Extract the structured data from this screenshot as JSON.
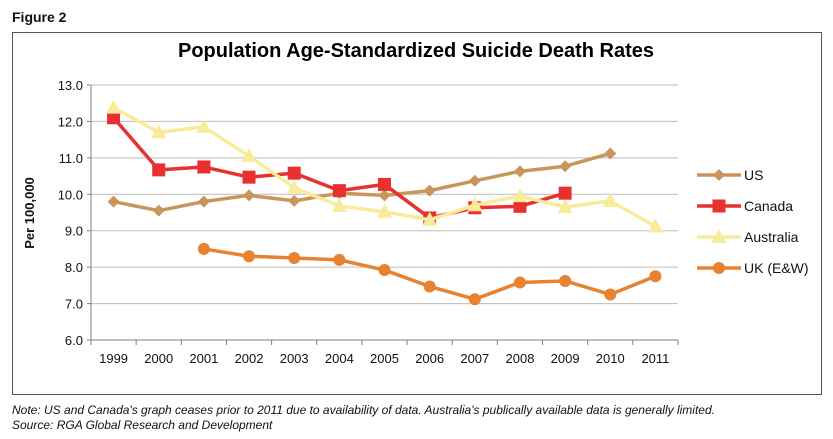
{
  "figure_label": "Figure 2",
  "notes": {
    "line1": "Note: US and Canada's graph ceases prior to 2011 due to availability of data. Australia's publically available data is generally limited.",
    "line2": "Source: RGA Global Research and Development"
  },
  "colors": {
    "US": "#C9955A",
    "Canada": "#E8302E",
    "Australia": "#F8EC9A",
    "UK (E&W)": "#E8822E",
    "grid": "#bdbdbd",
    "axis": "#7f7f7f"
  },
  "chart_data": {
    "type": "line",
    "title": "Population Age-Standardized Suicide Death Rates",
    "xlabel": "",
    "ylabel": "Per 100,000",
    "categories": [
      "1999",
      "2000",
      "2001",
      "2002",
      "2003",
      "2004",
      "2005",
      "2006",
      "2007",
      "2008",
      "2009",
      "2010",
      "2011"
    ],
    "ylim": [
      6.0,
      13.0
    ],
    "yticks": [
      "6.0",
      "7.0",
      "8.0",
      "9.0",
      "10.0",
      "11.0",
      "12.0",
      "13.0"
    ],
    "grid": true,
    "legend_position": "right",
    "series": [
      {
        "name": "US",
        "marker": "diamond",
        "values": [
          9.8,
          9.55,
          9.8,
          9.97,
          9.82,
          10.03,
          9.97,
          10.1,
          10.37,
          10.63,
          10.77,
          11.12,
          null
        ]
      },
      {
        "name": "Canada",
        "marker": "square",
        "values": [
          12.1,
          10.67,
          10.75,
          10.47,
          10.58,
          10.1,
          10.27,
          9.35,
          9.63,
          9.67,
          10.03,
          null,
          null
        ]
      },
      {
        "name": "Australia",
        "marker": "triangle",
        "values": [
          12.38,
          11.7,
          11.85,
          11.05,
          10.18,
          9.68,
          9.52,
          9.3,
          9.7,
          9.95,
          9.65,
          9.82,
          9.12
        ]
      },
      {
        "name": "UK (E&W)",
        "marker": "circle",
        "values": [
          null,
          null,
          8.5,
          8.3,
          8.25,
          8.2,
          7.92,
          7.47,
          7.12,
          7.58,
          7.62,
          7.25,
          7.75
        ]
      }
    ]
  }
}
